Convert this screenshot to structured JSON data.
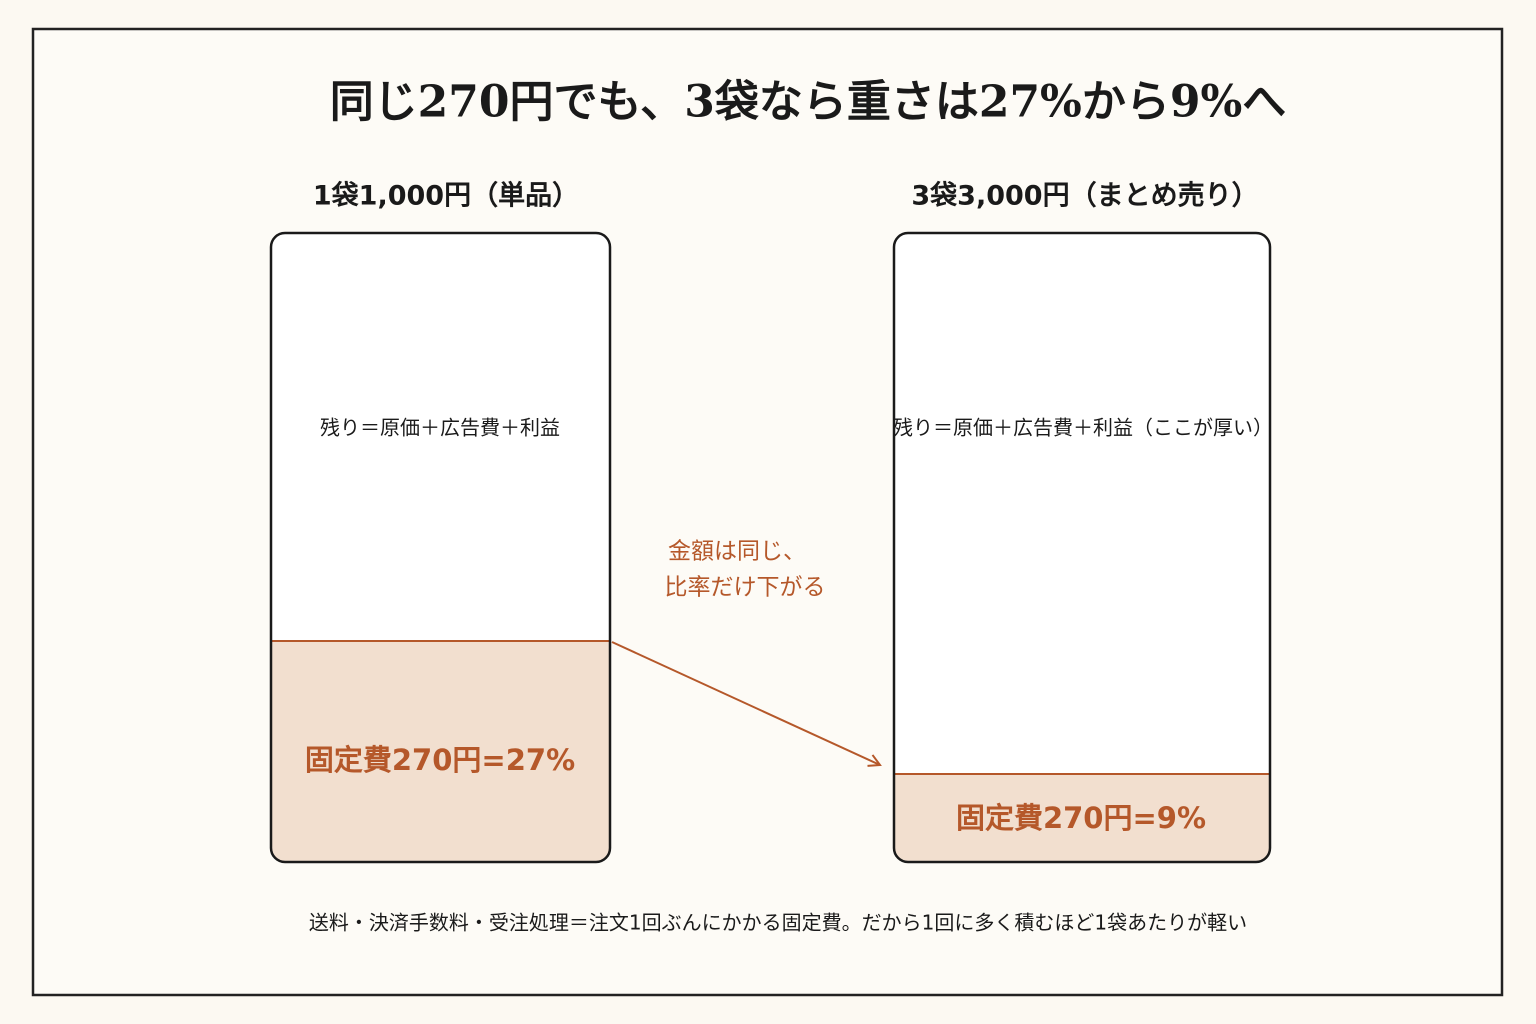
{
  "title": "同じ270円でも、3袋なら重さは27%から9%へ",
  "panels": [
    {
      "heading": "1袋1,000円（単品）",
      "remainder": "残り＝原価＋広告費＋利益",
      "fixed_cost": "固定費270円=27%"
    },
    {
      "heading": "3袋3,000円（まとめ売り）",
      "remainder": "残り＝原価＋広告費＋利益（ここが厚い）",
      "fixed_cost": "固定費270円=9%"
    }
  ],
  "annotation": [
    "金額は同じ、",
    "比率だけ下がる"
  ],
  "footnote": "送料・決済手数料・受注処理＝注文1回ぶんにかかる固定費。だから1回に多く積むほど1袋あたりが軽い"
}
